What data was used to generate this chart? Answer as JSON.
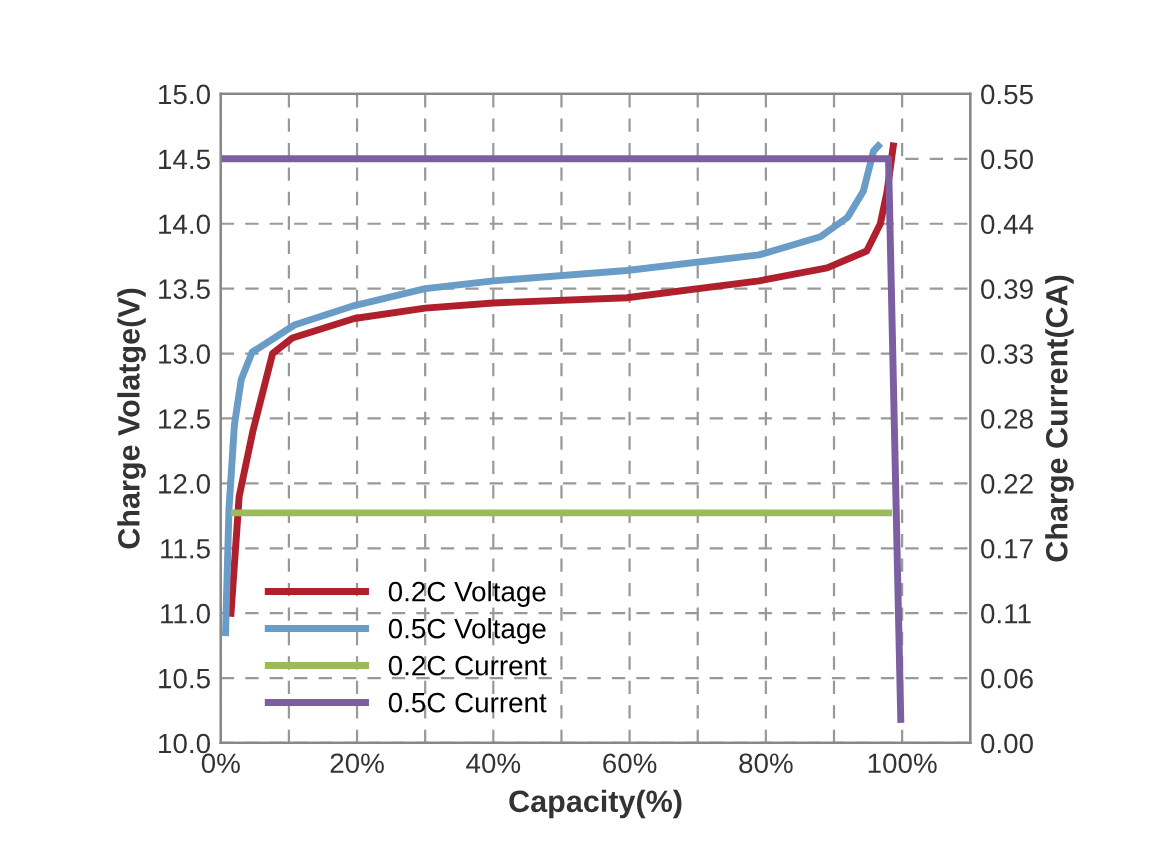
{
  "chart_data": {
    "type": "line",
    "xlabel": "Capacity(%)",
    "ylabel": "Charge Volatge(V)",
    "y2label": "Charge Current(CA)",
    "xlim": [
      0,
      110
    ],
    "xticks": [
      {
        "value": 0,
        "label": "0%"
      },
      {
        "value": 10,
        "label": null
      },
      {
        "value": 20,
        "label": "20%"
      },
      {
        "value": 30,
        "label": null
      },
      {
        "value": 40,
        "label": "40%"
      },
      {
        "value": 50,
        "label": null
      },
      {
        "value": 60,
        "label": "60%"
      },
      {
        "value": 70,
        "label": null
      },
      {
        "value": 80,
        "label": "80%"
      },
      {
        "value": 90,
        "label": null
      },
      {
        "value": 100,
        "label": "100%"
      }
    ],
    "ylim": [
      10,
      15
    ],
    "yticks": [
      {
        "value": 10,
        "label": "10.0"
      },
      10.5,
      {
        "value": 11,
        "label": "11.0"
      },
      11.5,
      {
        "value": 12,
        "label": "12.0"
      },
      12.5,
      {
        "value": 13,
        "label": "13.0"
      },
      13.5,
      {
        "value": 14,
        "label": "14.0"
      },
      14.5,
      {
        "value": 15,
        "label": "15.0"
      }
    ],
    "y2lim": [
      0,
      0.55
    ],
    "y2ticks": [
      {
        "value": 0,
        "label": "0.00"
      },
      {
        "value": 0.055,
        "label": "0.06"
      },
      0.11,
      {
        "value": 0.165,
        "label": "0.17"
      },
      0.22,
      {
        "value": 0.275,
        "label": "0.28"
      },
      0.33,
      {
        "value": 0.385,
        "label": "0.39"
      },
      0.44,
      {
        "value": 0.495,
        "label": "0.50"
      },
      0.55
    ],
    "grid": true,
    "legend": "bottom left",
    "marker": "none",
    "line_style": "solid",
    "series": [
      {
        "name": "0.2C Voltage",
        "color": "#b0202c",
        "x": [
          1.5,
          2.7,
          4.7,
          7.6,
          10.5,
          19.6,
          30,
          40,
          59.6,
          79,
          89,
          94.8,
          96.8,
          97.8,
          98.7
        ],
        "values": [
          11.0,
          11.9,
          12.4,
          13.0,
          13.12,
          13.27,
          13.35,
          13.39,
          13.43,
          13.56,
          13.66,
          13.79,
          14.0,
          14.25,
          14.6
        ]
      },
      {
        "name": "0.5C Voltage",
        "color": "#6a9cc8",
        "x": [
          0.7,
          1.2,
          2,
          3,
          4.6,
          10.8,
          19.6,
          30,
          40,
          59.6,
          79,
          88,
          92,
          94.3,
          95.8,
          96.5
        ],
        "values": [
          10.85,
          11.8,
          12.45,
          12.8,
          13.01,
          13.22,
          13.37,
          13.5,
          13.56,
          13.64,
          13.76,
          13.9,
          14.05,
          14.25,
          14.56,
          14.6
        ]
      },
      {
        "name": "0.2C Current",
        "color": "#9bbb59",
        "axis": "y2",
        "x": [
          2,
          98
        ],
        "values": [
          0.195,
          0.195
        ]
      },
      {
        "name": "0.5C Current",
        "color": "#7b5fa0",
        "axis": "y2",
        "x": [
          0,
          96.5,
          98,
          99.8
        ],
        "values": [
          0.495,
          0.495,
          0.495,
          0.02
        ]
      }
    ]
  }
}
